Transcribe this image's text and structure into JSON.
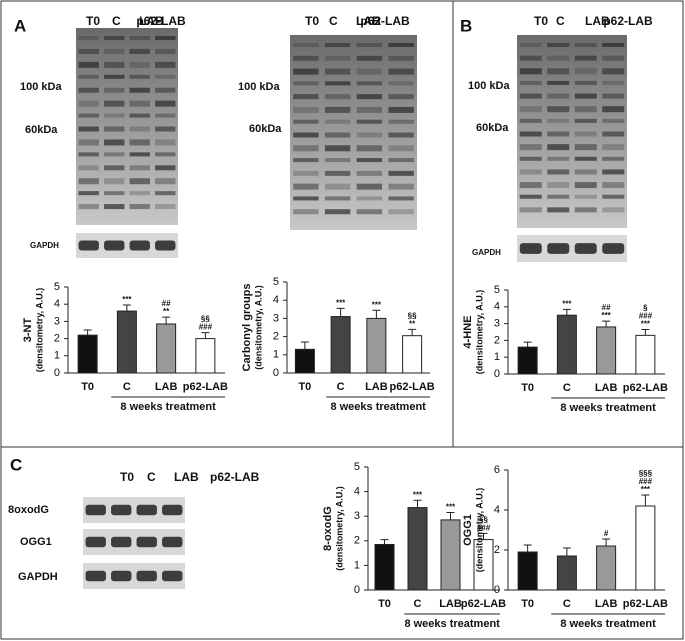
{
  "panels": [
    "A",
    "B",
    "C"
  ],
  "blots": [
    {
      "lanes": [
        "T0",
        "C",
        "LAB",
        "p62-LAB"
      ],
      "markers": [
        "100 kDa",
        "60kDa"
      ],
      "loading": "GAPDH"
    },
    {
      "lanes": [
        "T0",
        "C",
        "LAB",
        "p62-LAB"
      ],
      "markers": [
        "100 kDa",
        "60kDa"
      ]
    },
    {
      "lanes": [
        "T0",
        "C",
        "LAB",
        "p62-LAB"
      ],
      "markers": [
        "100 kDa",
        "60kDa"
      ],
      "loading": "GAPDH"
    },
    {
      "lanes": [
        "T0",
        "C",
        "LAB",
        "p62-LAB"
      ],
      "rows": [
        "8oxodG",
        "OGG1",
        "GAPDH"
      ]
    }
  ],
  "chart_data": [
    {
      "type": "bar",
      "ylabel": [
        "3-NT",
        "(densitometry, A.U.)"
      ],
      "categories": [
        "T0",
        "C",
        "LAB",
        "p62-LAB"
      ],
      "values": [
        2.2,
        3.6,
        2.85,
        2.0
      ],
      "errors": [
        0.3,
        0.35,
        0.4,
        0.35
      ],
      "colors": [
        "#111111",
        "#444444",
        "#999999",
        "#ffffff"
      ],
      "annotations": [
        [],
        [
          "***"
        ],
        [
          "##",
          "**"
        ],
        [
          "§§",
          "###"
        ]
      ],
      "group_label": "8 weeks treatment",
      "ylim": [
        0,
        5
      ],
      "yticks": [
        0,
        1,
        2,
        3,
        4,
        5
      ]
    },
    {
      "type": "bar",
      "ylabel": [
        "Carbonyl groups",
        "(densitometry, A.U.)"
      ],
      "categories": [
        "T0",
        "C",
        "LAB",
        "p62-LAB"
      ],
      "values": [
        1.3,
        3.1,
        3.0,
        2.05
      ],
      "errors": [
        0.4,
        0.45,
        0.45,
        0.35
      ],
      "colors": [
        "#111111",
        "#444444",
        "#999999",
        "#ffffff"
      ],
      "annotations": [
        [],
        [
          "***"
        ],
        [
          "***"
        ],
        [
          "§§",
          "**"
        ]
      ],
      "group_label": "8 weeks treatment",
      "ylim": [
        0,
        5
      ],
      "yticks": [
        0,
        1,
        2,
        3,
        4,
        5
      ]
    },
    {
      "type": "bar",
      "ylabel": [
        "4-HNE",
        "(densitometry, A.U.)"
      ],
      "categories": [
        "T0",
        "C",
        "LAB",
        "p62-LAB"
      ],
      "values": [
        1.6,
        3.5,
        2.8,
        2.3
      ],
      "errors": [
        0.3,
        0.35,
        0.35,
        0.35
      ],
      "colors": [
        "#111111",
        "#444444",
        "#999999",
        "#ffffff"
      ],
      "annotations": [
        [],
        [
          "***"
        ],
        [
          "##",
          "***"
        ],
        [
          "§",
          "###",
          "***"
        ]
      ],
      "group_label": "8 weeks treatment",
      "ylim": [
        0,
        5
      ],
      "yticks": [
        0,
        1,
        2,
        3,
        4,
        5
      ]
    },
    {
      "type": "bar",
      "ylabel": [
        "8-oxodG",
        "(densitometry, A.U.)"
      ],
      "categories": [
        "T0",
        "C",
        "LAB",
        "p62-LAB"
      ],
      "values": [
        1.85,
        3.35,
        2.85,
        2.05
      ],
      "errors": [
        0.2,
        0.3,
        0.3,
        0.25
      ],
      "colors": [
        "#111111",
        "#444444",
        "#999999",
        "#ffffff"
      ],
      "annotations": [
        [],
        [
          "***"
        ],
        [
          "***"
        ],
        [
          "§§",
          "###"
        ]
      ],
      "group_label": "8 weeks treatment",
      "ylim": [
        0,
        5
      ],
      "yticks": [
        0,
        1,
        2,
        3,
        4,
        5
      ]
    },
    {
      "type": "bar",
      "ylabel": [
        "OGG1",
        "(densitometry, A.U.)"
      ],
      "categories": [
        "T0",
        "C",
        "LAB",
        "p62-LAB"
      ],
      "values": [
        1.9,
        1.7,
        2.2,
        4.2
      ],
      "errors": [
        0.35,
        0.4,
        0.35,
        0.55
      ],
      "colors": [
        "#111111",
        "#444444",
        "#999999",
        "#ffffff"
      ],
      "annotations": [
        [],
        [],
        [
          "#"
        ],
        [
          "§§§",
          "###",
          "***"
        ]
      ],
      "group_label": "8 weeks treatment",
      "ylim": [
        0,
        6
      ],
      "yticks": [
        0,
        2,
        4,
        6
      ]
    }
  ]
}
